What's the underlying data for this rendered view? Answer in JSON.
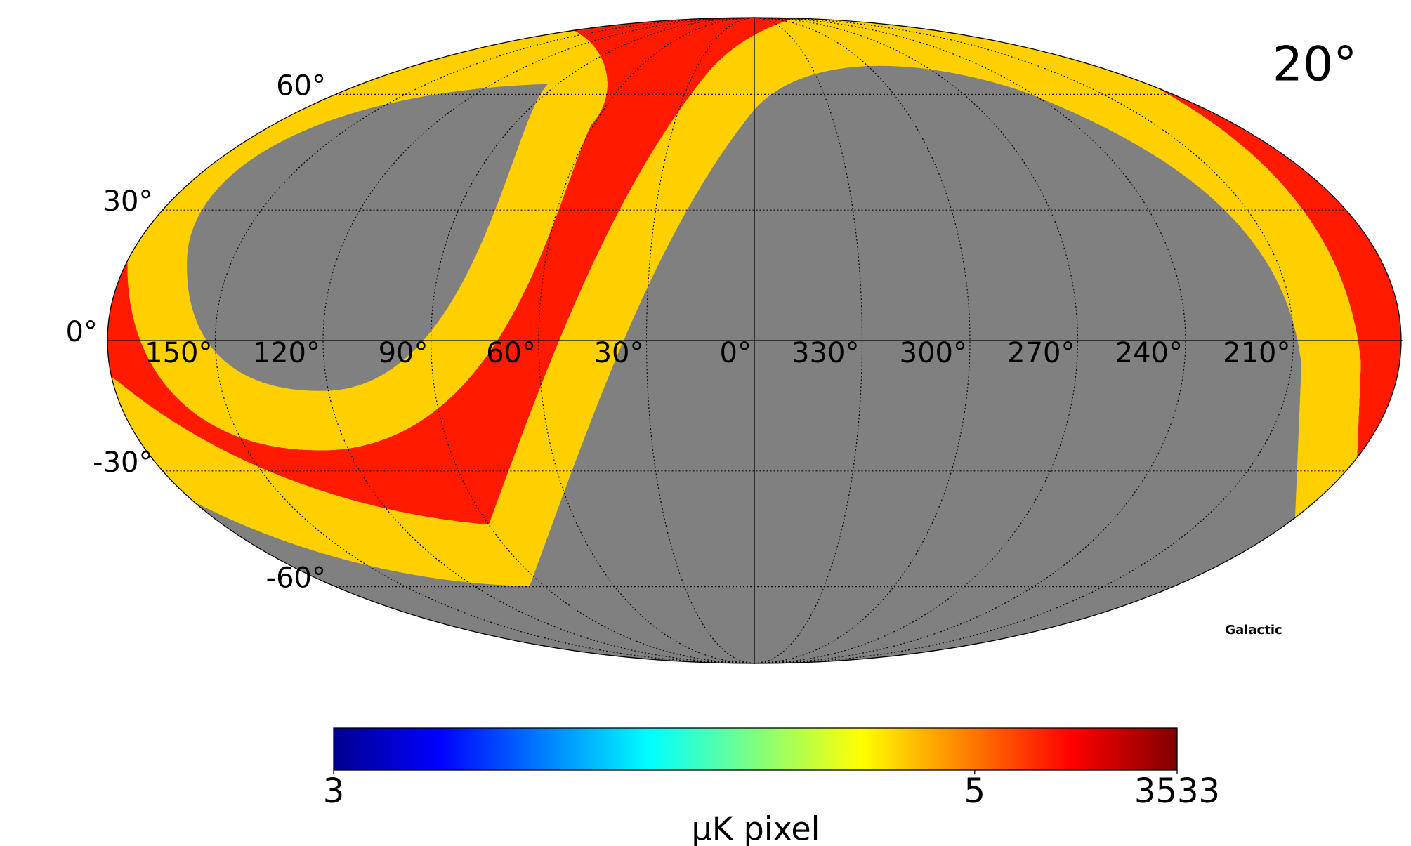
{
  "title": "20°",
  "coord_label": "Galactic",
  "graticule": {
    "lat_ticks": [
      {
        "value": 60,
        "label": "60°"
      },
      {
        "value": 30,
        "label": "30°"
      },
      {
        "value": 0,
        "label": "0°"
      },
      {
        "value": -30,
        "label": "-30°"
      },
      {
        "value": -60,
        "label": "-60°"
      }
    ],
    "lon_ticks": [
      {
        "value": 150,
        "label": "150°"
      },
      {
        "value": 120,
        "label": "120°"
      },
      {
        "value": 90,
        "label": "90°"
      },
      {
        "value": 60,
        "label": "60°"
      },
      {
        "value": 30,
        "label": "30°"
      },
      {
        "value": 0,
        "label": "0°"
      },
      {
        "value": 330,
        "label": "330°"
      },
      {
        "value": 300,
        "label": "300°"
      },
      {
        "value": 270,
        "label": "270°"
      },
      {
        "value": 240,
        "label": "240°"
      },
      {
        "value": 210,
        "label": "210°"
      }
    ]
  },
  "colorbar": {
    "label": "μK pixel",
    "range": [
      3,
      3533
    ],
    "ticks": [
      3,
      5,
      3533
    ]
  }
}
